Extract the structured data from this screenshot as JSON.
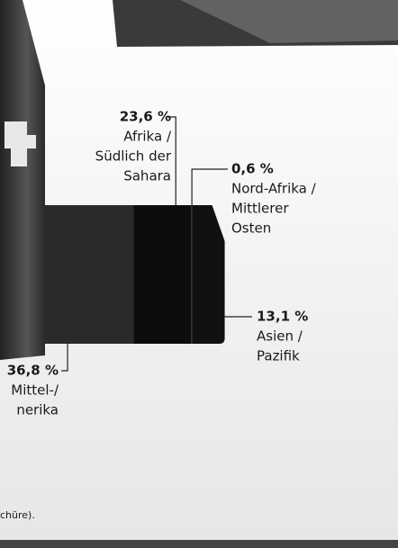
{
  "chart_data": {
    "type": "stacked-bar",
    "categories": [
      [
        "Mittel-/",
        "nerika"
      ],
      [
        "Afrika /",
        "Südlich der",
        "Sahara"
      ],
      [
        "Nord-Afrika /",
        "Mittlerer",
        "Osten"
      ],
      [
        "Asien /",
        "Pazifik"
      ]
    ],
    "values": [
      36.8,
      23.6,
      0.6,
      13.1
    ],
    "value_labels": [
      "36,8 %",
      "23,6 %",
      "0,6 %",
      "13,1 %"
    ],
    "colors": [
      "#2a2a2a",
      "#0d0d0d",
      "#1a1a1a",
      "#111111"
    ],
    "footnote": "chüre)."
  }
}
